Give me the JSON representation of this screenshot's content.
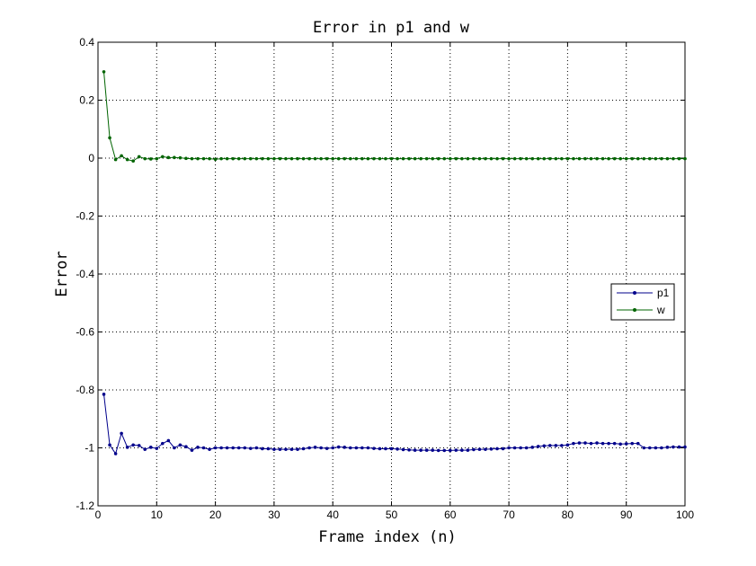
{
  "chart_data": {
    "type": "line",
    "title": "Error in p1 and w",
    "xlabel": "Frame index (n)",
    "ylabel": "Error",
    "xlim": [
      0,
      100
    ],
    "ylim": [
      -1.2,
      0.4
    ],
    "xticks": [
      0,
      10,
      20,
      30,
      40,
      50,
      60,
      70,
      80,
      90,
      100
    ],
    "yticks": [
      -1.2,
      -1,
      -0.8,
      -0.6,
      -0.4,
      -0.2,
      0,
      0.2,
      0.4
    ],
    "xtick_labels": [
      "0",
      "10",
      "20",
      "30",
      "40",
      "50",
      "60",
      "70",
      "80",
      "90",
      "100"
    ],
    "ytick_labels": [
      "-1.2",
      "-1",
      "-0.8",
      "-0.6",
      "-0.4",
      "-0.2",
      "0",
      "0.2",
      "0.4"
    ],
    "grid": true,
    "legend_position": "right",
    "x": [
      1,
      2,
      3,
      4,
      5,
      6,
      7,
      8,
      9,
      10,
      11,
      12,
      13,
      14,
      15,
      16,
      17,
      18,
      19,
      20,
      21,
      22,
      23,
      24,
      25,
      26,
      27,
      28,
      29,
      30,
      31,
      32,
      33,
      34,
      35,
      36,
      37,
      38,
      39,
      40,
      41,
      42,
      43,
      44,
      45,
      46,
      47,
      48,
      49,
      50,
      51,
      52,
      53,
      54,
      55,
      56,
      57,
      58,
      59,
      60,
      61,
      62,
      63,
      64,
      65,
      66,
      67,
      68,
      69,
      70,
      71,
      72,
      73,
      74,
      75,
      76,
      77,
      78,
      79,
      80,
      81,
      82,
      83,
      84,
      85,
      86,
      87,
      88,
      89,
      90,
      91,
      92,
      93,
      94,
      95,
      96,
      97,
      98,
      99,
      100
    ],
    "series": [
      {
        "name": "p1",
        "color": "#00008b",
        "values": [
          -0.815,
          -0.99,
          -1.02,
          -0.95,
          -0.998,
          -0.99,
          -0.992,
          -1.005,
          -0.998,
          -1.002,
          -0.985,
          -0.975,
          -1.0,
          -0.99,
          -0.996,
          -1.008,
          -0.998,
          -1.0,
          -1.005,
          -1.0,
          -1.0,
          -1.0,
          -1.0,
          -1.0,
          -1.0,
          -1.002,
          -1.0,
          -1.003,
          -1.003,
          -1.005,
          -1.005,
          -1.005,
          -1.005,
          -1.005,
          -1.003,
          -1.0,
          -0.998,
          -1.0,
          -1.002,
          -1.0,
          -0.997,
          -0.998,
          -1.0,
          -1.0,
          -1.0,
          -1.0,
          -1.002,
          -1.003,
          -1.003,
          -1.003,
          -1.004,
          -1.006,
          -1.007,
          -1.008,
          -1.008,
          -1.008,
          -1.008,
          -1.009,
          -1.009,
          -1.009,
          -1.008,
          -1.008,
          -1.008,
          -1.006,
          -1.005,
          -1.005,
          -1.004,
          -1.003,
          -1.003,
          -1.0,
          -1.0,
          -1.0,
          -1.0,
          -0.998,
          -0.995,
          -0.993,
          -0.992,
          -0.992,
          -0.992,
          -0.99,
          -0.985,
          -0.983,
          -0.983,
          -0.985,
          -0.983,
          -0.985,
          -0.985,
          -0.985,
          -0.987,
          -0.986,
          -0.985,
          -0.985,
          -1.0,
          -1.0,
          -1.0,
          -1.0,
          -0.998,
          -0.997,
          -0.997,
          -0.997
        ]
      },
      {
        "name": "w",
        "color": "#006400",
        "values": [
          0.298,
          0.07,
          -0.005,
          0.008,
          -0.005,
          -0.01,
          0.005,
          -0.002,
          -0.003,
          -0.002,
          0.005,
          0.002,
          0.002,
          0.001,
          -0.001,
          -0.002,
          -0.002,
          -0.002,
          -0.002,
          -0.004,
          -0.002,
          -0.002,
          -0.002,
          -0.002,
          -0.002,
          -0.002,
          -0.002,
          -0.002,
          -0.002,
          -0.002,
          -0.002,
          -0.002,
          -0.002,
          -0.002,
          -0.002,
          -0.002,
          -0.002,
          -0.002,
          -0.002,
          -0.002,
          -0.002,
          -0.002,
          -0.002,
          -0.002,
          -0.002,
          -0.002,
          -0.002,
          -0.002,
          -0.002,
          -0.002,
          -0.002,
          -0.002,
          -0.002,
          -0.002,
          -0.002,
          -0.002,
          -0.002,
          -0.002,
          -0.002,
          -0.002,
          -0.002,
          -0.002,
          -0.002,
          -0.002,
          -0.002,
          -0.002,
          -0.002,
          -0.002,
          -0.002,
          -0.002,
          -0.002,
          -0.002,
          -0.002,
          -0.002,
          -0.002,
          -0.002,
          -0.002,
          -0.002,
          -0.002,
          -0.002,
          -0.002,
          -0.002,
          -0.002,
          -0.002,
          -0.002,
          -0.002,
          -0.002,
          -0.002,
          -0.002,
          -0.002,
          -0.002,
          -0.002,
          -0.002,
          -0.002,
          -0.002,
          -0.002,
          -0.002,
          -0.002,
          -0.002,
          -0.002
        ]
      }
    ]
  }
}
